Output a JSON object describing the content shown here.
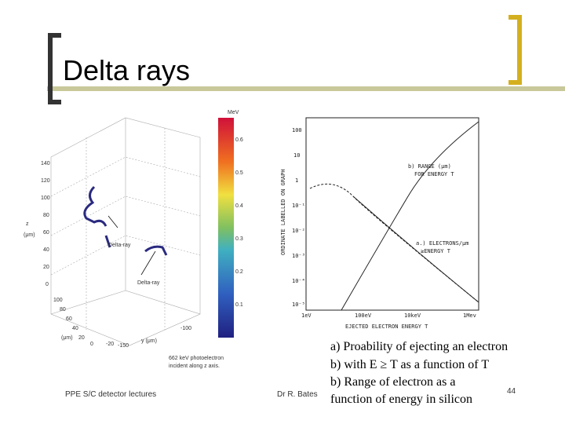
{
  "header": {
    "title": "Delta rays"
  },
  "left_figure": {
    "colorbar_unit": "MeV",
    "colorbar_ticks": [
      "0.6",
      "0.5",
      "0.4",
      "0.3",
      "0.2",
      "0.1"
    ],
    "z_axis_label": "z",
    "z_unit": "(μm)",
    "z_ticks": [
      "140",
      "120",
      "100",
      "80",
      "60",
      "40",
      "20",
      "0"
    ],
    "x_ticks": [
      "100",
      "80",
      "60",
      "40",
      "20",
      "0",
      "-20"
    ],
    "x_unit": "(μm)",
    "y_axis_label": "y (μm)",
    "y_ticks": [
      "-100",
      "-150"
    ],
    "annotations": [
      "Delta-ray",
      "Delta-ray"
    ],
    "note_lines": [
      "662 keV photoelectron",
      "incident along z axis."
    ]
  },
  "right_figure": {
    "y_axis_label": "ORDINATE LABELLED ON GRAPH",
    "y_ticks": [
      "100",
      "10",
      "1",
      "10⁻¹",
      "10⁻²",
      "10⁻³",
      "10⁻⁴",
      "10⁻⁵"
    ],
    "x_ticks": [
      "1eV",
      "100eV",
      "10keV",
      "1Mev"
    ],
    "x_axis_label": "EJECTED ELECTRON ENERGY T",
    "curve_b_label": [
      "b) RANGE (μm)",
      "FOR ENERGY T"
    ],
    "curve_a_label": [
      "a.) ELECTRONS/μm",
      "≥ENERGY T"
    ]
  },
  "caption": [
    "a)  Proability of ejecting an electron",
    "b)  with E ≥ T as a function of T",
    "b) Range of electron as a",
    "function of energy in silicon"
  ],
  "footer": {
    "left": "PPE S/C detector lectures",
    "center": "Dr R. Bates",
    "page": "44"
  }
}
